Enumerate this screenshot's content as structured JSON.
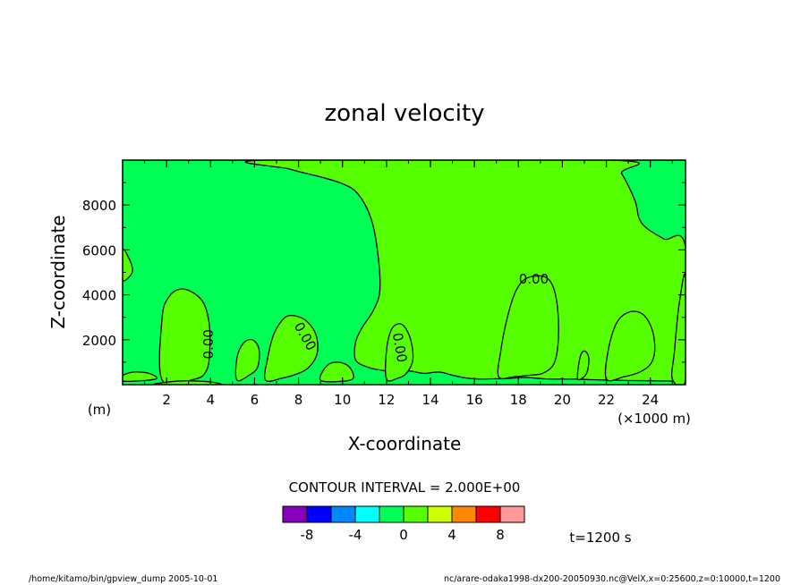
{
  "chart_data": {
    "type": "contour",
    "title": "zonal velocity",
    "xlabel": "X-coordinate",
    "ylabel": "Z-coordinate",
    "x_unit_label": "(×1000 m)",
    "y_unit_label": "(m)",
    "xlim": [
      0,
      25.6
    ],
    "ylim": [
      0,
      10000
    ],
    "xticks": [
      2,
      4,
      6,
      8,
      10,
      12,
      14,
      16,
      18,
      20,
      22,
      24
    ],
    "xtick_labels": [
      "2",
      "4",
      "6",
      "8",
      "10",
      "12",
      "14",
      "16",
      "18",
      "20",
      "22",
      "24"
    ],
    "yticks": [
      2000,
      4000,
      6000,
      8000
    ],
    "ytick_labels": [
      "2000",
      "4000",
      "6000",
      "8000"
    ],
    "contour_interval_text": "CONTOUR INTERVAL = 2.000E+00",
    "contour_labels": [
      {
        "text": "0.00",
        "x": 18.7,
        "y": 4700,
        "rotate": 0
      },
      {
        "text": "0.00",
        "x": 3.9,
        "y": 1800,
        "rotate": -90
      },
      {
        "text": "0.00",
        "x": 8.3,
        "y": 2150,
        "rotate": 60
      },
      {
        "text": "0.00",
        "x": 12.6,
        "y": 1650,
        "rotate": 80
      }
    ],
    "background_level_color": "#00ff55",
    "region_color": "#55ff00",
    "regions": [
      [
        [
          6.5,
          10000
        ],
        [
          7.6,
          9600
        ],
        [
          9.0,
          9250
        ],
        [
          10.0,
          8950
        ],
        [
          10.7,
          8500
        ],
        [
          11.3,
          7400
        ],
        [
          11.6,
          5900
        ],
        [
          11.7,
          4200
        ],
        [
          11.4,
          3300
        ],
        [
          10.9,
          2550
        ],
        [
          10.6,
          1900
        ],
        [
          10.6,
          1100
        ],
        [
          11.2,
          760
        ],
        [
          11.9,
          620
        ],
        [
          12.5,
          560
        ],
        [
          13.1,
          600
        ],
        [
          13.7,
          500
        ],
        [
          14.4,
          560
        ],
        [
          15.0,
          420
        ],
        [
          15.6,
          300
        ],
        [
          16.2,
          250
        ],
        [
          16.8,
          260
        ],
        [
          17.5,
          270
        ],
        [
          18.3,
          320
        ],
        [
          19.2,
          260
        ],
        [
          20.0,
          250
        ],
        [
          20.6,
          250
        ],
        [
          21.3,
          220
        ],
        [
          22.2,
          200
        ],
        [
          23.2,
          180
        ],
        [
          24.2,
          170
        ],
        [
          25.0,
          160
        ],
        [
          25.6,
          150
        ],
        [
          25.6,
          6100
        ],
        [
          24.6,
          6500
        ],
        [
          23.6,
          7200
        ],
        [
          23.3,
          8200
        ],
        [
          22.7,
          9400
        ],
        [
          22.2,
          10000
        ]
      ],
      [
        [
          0,
          6000
        ],
        [
          0.3,
          5600
        ],
        [
          0.45,
          5100
        ],
        [
          0.3,
          4800
        ],
        [
          0,
          4700
        ]
      ],
      [
        [
          1.8,
          200
        ],
        [
          1.8,
          3000
        ],
        [
          2.1,
          3900
        ],
        [
          2.6,
          4250
        ],
        [
          3.2,
          4100
        ],
        [
          3.7,
          3600
        ],
        [
          3.95,
          2600
        ],
        [
          3.95,
          1300
        ],
        [
          3.8,
          600
        ],
        [
          3.3,
          250
        ]
      ],
      [
        [
          5.2,
          200
        ],
        [
          5.2,
          1200
        ],
        [
          5.5,
          1850
        ],
        [
          5.9,
          2000
        ],
        [
          6.2,
          1600
        ],
        [
          6.15,
          800
        ],
        [
          5.8,
          450
        ]
      ],
      [
        [
          6.5,
          200
        ],
        [
          6.6,
          1200
        ],
        [
          6.9,
          2300
        ],
        [
          7.4,
          3000
        ],
        [
          7.9,
          3050
        ],
        [
          8.4,
          2800
        ],
        [
          8.8,
          2200
        ],
        [
          8.85,
          1400
        ],
        [
          8.5,
          800
        ],
        [
          8.0,
          500
        ],
        [
          7.3,
          300
        ]
      ],
      [
        [
          12.0,
          250
        ],
        [
          12.0,
          1500
        ],
        [
          12.2,
          2400
        ],
        [
          12.5,
          2700
        ],
        [
          12.8,
          2600
        ],
        [
          13.1,
          2000
        ],
        [
          13.2,
          1100
        ],
        [
          12.9,
          500
        ],
        [
          12.5,
          280
        ]
      ],
      [
        [
          17.1,
          350
        ],
        [
          17.2,
          1500
        ],
        [
          17.5,
          3000
        ],
        [
          17.9,
          4200
        ],
        [
          18.4,
          4750
        ],
        [
          19.2,
          4800
        ],
        [
          19.6,
          4300
        ],
        [
          19.8,
          3200
        ],
        [
          19.8,
          1800
        ],
        [
          19.6,
          900
        ],
        [
          19.1,
          500
        ],
        [
          18.5,
          420
        ],
        [
          17.8,
          350
        ]
      ],
      [
        [
          20.7,
          250
        ],
        [
          20.8,
          1200
        ],
        [
          21.0,
          1500
        ],
        [
          21.2,
          1200
        ],
        [
          21.1,
          500
        ]
      ],
      [
        [
          22.0,
          250
        ],
        [
          22.1,
          1600
        ],
        [
          22.5,
          2800
        ],
        [
          23.1,
          3250
        ],
        [
          23.7,
          3100
        ],
        [
          24.1,
          2400
        ],
        [
          24.2,
          1500
        ],
        [
          24.0,
          900
        ],
        [
          23.5,
          550
        ],
        [
          22.8,
          350
        ]
      ],
      [
        [
          25.0,
          250
        ],
        [
          25.1,
          1500
        ],
        [
          25.3,
          3500
        ],
        [
          25.6,
          4800
        ],
        [
          25.6,
          250
        ]
      ],
      [
        [
          0,
          150
        ],
        [
          0,
          400
        ],
        [
          0.5,
          560
        ],
        [
          1.2,
          500
        ],
        [
          1.5,
          250
        ]
      ],
      [
        [
          1.5,
          0
        ],
        [
          4.3,
          0
        ],
        [
          4.0,
          120
        ],
        [
          2.9,
          170
        ],
        [
          2.2,
          130
        ]
      ],
      [
        [
          9.0,
          200
        ],
        [
          9.3,
          850
        ],
        [
          9.8,
          1000
        ],
        [
          10.3,
          800
        ],
        [
          10.5,
          300
        ],
        [
          10.0,
          150
        ]
      ]
    ],
    "colorbar": {
      "colors": [
        "#8800bb",
        "#0000ff",
        "#0088ff",
        "#00ffff",
        "#00ff55",
        "#55ff00",
        "#ccff00",
        "#ff8800",
        "#ff0000",
        "#ff9999"
      ],
      "tick_labels": [
        "-8",
        "-4",
        "0",
        "4",
        "8"
      ]
    },
    "time_label": "t=1200 s",
    "footer_left": "/home/kitamo/bin/gpview_dump  2005-10-01",
    "footer_right": "nc/arare-odaka1998-dx200-20050930.nc@VelX,x=0:25600,z=0:10000,t=1200"
  }
}
